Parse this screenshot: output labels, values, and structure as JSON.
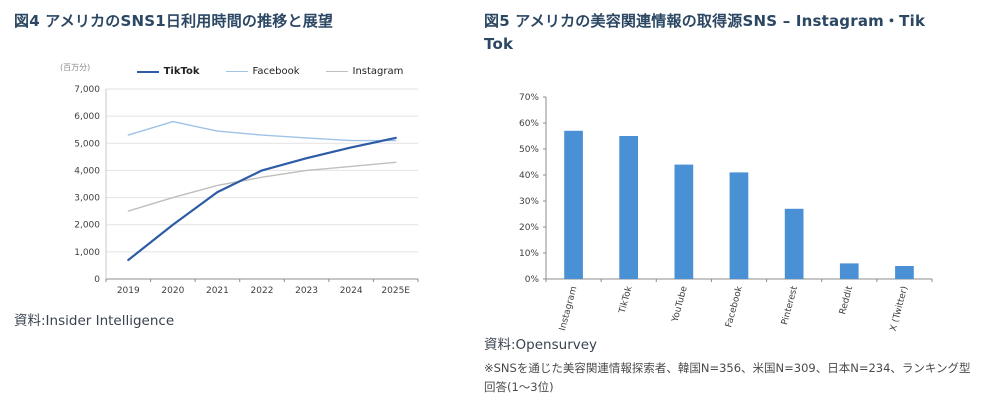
{
  "chart_data": [
    {
      "id": "us-sns-daily-usage",
      "type": "line",
      "title": "図4 アメリカのSNS1日利用時間の推移と展望",
      "ylabel": "(百万分)",
      "source": "資料:Insider Intelligence",
      "categories": [
        "2019",
        "2020",
        "2021",
        "2022",
        "2023",
        "2024",
        "2025E"
      ],
      "series": [
        {
          "name": "TikTok",
          "color": "#2d5ba6",
          "line_width": 2.2,
          "values": [
            700,
            2000,
            3200,
            4000,
            4450,
            4850,
            5200
          ]
        },
        {
          "name": "Facebook",
          "color": "#9dc3e6",
          "line_width": 1.4,
          "values": [
            5300,
            5800,
            5450,
            5300,
            5200,
            5100,
            5100
          ]
        },
        {
          "name": "Instagram",
          "color": "#bfbfbf",
          "line_width": 1.4,
          "values": [
            2500,
            3000,
            3450,
            3750,
            4000,
            4150,
            4300
          ]
        }
      ],
      "ylim": [
        0,
        7000
      ],
      "ytick_step": 1000,
      "grid": "horizontal",
      "legend_position": "top"
    },
    {
      "id": "us-beauty-info-source-sns",
      "type": "bar",
      "title": "図5 アメリカの美容関連情報の取得源SNS – Instagram・TikTok",
      "title_lines": [
        "図5 アメリカの美容関連情報の取得源SNS – Instagram・Tik",
        "Tok"
      ],
      "source": "資料:Opensurvey",
      "note": "※SNSを通じた美容関連情報探索者、韓国N=356、米国N=309、日本N=234、ランキング型回答(1〜3位)",
      "categories": [
        "Instagram",
        "TikTok",
        "YouTube",
        "Facebook",
        "Pinterest",
        "Reddit",
        "X (Twitter)"
      ],
      "values": [
        57,
        55,
        44,
        41,
        27,
        6,
        5
      ],
      "unit": "%",
      "bar_color": "#4a90d5",
      "ylim": [
        0,
        70
      ],
      "ytick_step": 10,
      "grid": "off",
      "legend_position": "none"
    }
  ]
}
